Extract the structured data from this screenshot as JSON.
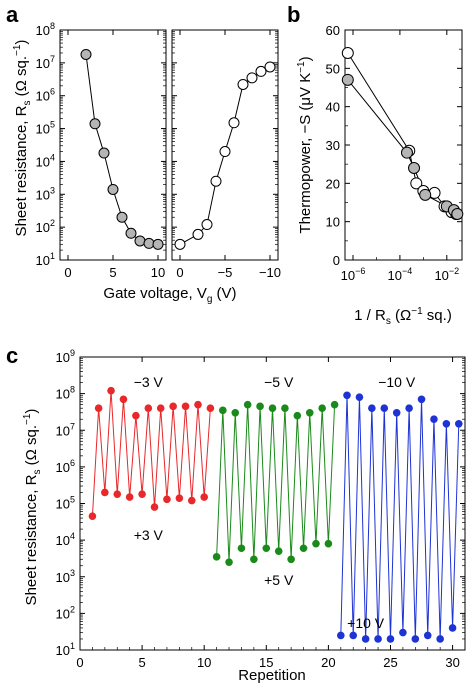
{
  "chart_data": [
    {
      "panel_label": "a",
      "type": "scatter",
      "ylabel": "Sheet resistance, R",
      "ylabel_sub": "s",
      "ylabel_unit": " (Ω sq.",
      "ylabel_unit_exp": "−1",
      "ylabel_close": ")",
      "xlabel": "Gate voltage, V",
      "xlabel_sub": "g",
      "xlabel_unit": " (V)",
      "y_scale": "log",
      "ylim": [
        10,
        100000000
      ],
      "y_ticks": [
        {
          "value": 10,
          "mantissa": "10",
          "exp": "1"
        },
        {
          "value": 100,
          "mantissa": "10",
          "exp": "2"
        },
        {
          "value": 1000,
          "mantissa": "10",
          "exp": "3"
        },
        {
          "value": 10000,
          "mantissa": "10",
          "exp": "4"
        },
        {
          "value": 100000,
          "mantissa": "10",
          "exp": "5"
        },
        {
          "value": 1000000,
          "mantissa": "10",
          "exp": "6"
        },
        {
          "value": 10000000,
          "mantissa": "10",
          "exp": "7"
        },
        {
          "value": 100000000,
          "mantissa": "10",
          "exp": "8"
        }
      ],
      "subpanels": [
        {
          "xlim": [
            0,
            10
          ],
          "x_ticks": [
            {
              "value": 0,
              "label": "0"
            },
            {
              "value": 5,
              "label": "5"
            },
            {
              "value": 10,
              "label": "10"
            }
          ],
          "series": [
            {
              "marker_fill": "#b5b5b5",
              "x": [
                2,
                3,
                4,
                5,
                6,
                7,
                8,
                9,
                10
              ],
              "y": [
                18000000,
                140000,
                18000,
                1400,
                200,
                65,
                38,
                32,
                30
              ]
            }
          ]
        },
        {
          "xlim": [
            0,
            -10
          ],
          "x_ticks": [
            {
              "value": 0,
              "label": "0"
            },
            {
              "value": -5,
              "label": "−5"
            },
            {
              "value": -10,
              "label": "−10"
            }
          ],
          "series": [
            {
              "marker_fill": "#ffffff",
              "x": [
                0,
                -2,
                -3,
                -4,
                -5,
                -6,
                -7,
                -8,
                -9,
                -10
              ],
              "y": [
                30,
                60,
                120,
                2500,
                20000,
                150000,
                2200000,
                3500000,
                5500000,
                7500000
              ]
            }
          ]
        }
      ]
    },
    {
      "panel_label": "b",
      "type": "scatter",
      "ylabel": "Thermopower, −S (μV K",
      "ylabel_exp": "−1",
      "ylabel_close": ")",
      "xlabel": "1 / R",
      "xlabel_sub": "s",
      "xlabel_unit": " (Ω",
      "xlabel_unit_exp": "−1",
      "xlabel_close": " sq.)",
      "x_scale": "log",
      "xlim": [
        1e-06,
        0.03
      ],
      "ylim": [
        0,
        60
      ],
      "x_ticks": [
        {
          "value": 1e-06,
          "mantissa": "10",
          "exp": "−6"
        },
        {
          "value": 0.0001,
          "mantissa": "10",
          "exp": "−4"
        },
        {
          "value": 0.01,
          "mantissa": "10",
          "exp": "−2"
        }
      ],
      "y_ticks": [
        0,
        10,
        20,
        30,
        40,
        50,
        60
      ],
      "series": [
        {
          "marker_fill": "#ffffff",
          "x": [
            6e-07,
            0.00025,
            0.0005,
            0.001,
            0.003,
            0.008,
            0.016,
            0.025
          ],
          "y": [
            54,
            28.5,
            20,
            18,
            17.5,
            14,
            12.5,
            12
          ]
        },
        {
          "marker_fill": "#b5b5b5",
          "x": [
            6e-07,
            0.0002,
            0.0004,
            0.0012,
            0.01,
            0.02,
            0.028
          ],
          "y": [
            47,
            28,
            24,
            17,
            14,
            13,
            12
          ]
        }
      ]
    },
    {
      "panel_label": "c",
      "type": "line",
      "ylabel": "Sheet resistance, R",
      "ylabel_sub": "s",
      "ylabel_unit": " (Ω sq.",
      "ylabel_unit_exp": "−1",
      "ylabel_close": ")",
      "xlabel": "Repetition",
      "y_scale": "log",
      "ylim": [
        10,
        1000000000
      ],
      "xlim": [
        0,
        31
      ],
      "x_ticks": [
        0,
        5,
        10,
        15,
        20,
        25,
        30
      ],
      "y_ticks": [
        {
          "value": 10,
          "mantissa": "10",
          "exp": "1"
        },
        {
          "value": 100,
          "mantissa": "10",
          "exp": "2"
        },
        {
          "value": 1000,
          "mantissa": "10",
          "exp": "3"
        },
        {
          "value": 10000,
          "mantissa": "10",
          "exp": "4"
        },
        {
          "value": 100000,
          "mantissa": "10",
          "exp": "5"
        },
        {
          "value": 1000000,
          "mantissa": "10",
          "exp": "6"
        },
        {
          "value": 10000000,
          "mantissa": "10",
          "exp": "7"
        },
        {
          "value": 100000000,
          "mantissa": "10",
          "exp": "8"
        },
        {
          "value": 1000000000,
          "mantissa": "10",
          "exp": "9"
        }
      ],
      "series": [
        {
          "color": "#e8282a",
          "x": [
            1,
            1.5,
            2,
            2.5,
            3,
            3.5,
            4,
            4.5,
            5,
            5.5,
            6,
            6.5,
            7,
            7.5,
            8,
            8.5,
            9,
            9.5,
            10,
            10.5
          ],
          "y": [
            45000,
            40000000,
            200000,
            120000000,
            180000,
            70000000,
            150000,
            25000000,
            180000,
            40000000,
            80000,
            40000000,
            130000,
            45000000,
            140000,
            45000000,
            120000,
            50000000,
            150000,
            40000000
          ]
        },
        {
          "color": "#1a8a1a",
          "x": [
            11,
            11.5,
            12,
            12.5,
            13,
            13.5,
            14,
            14.5,
            15,
            15.5,
            16,
            16.5,
            17,
            17.5,
            18,
            18.5,
            19,
            19.5,
            20,
            20.5
          ],
          "y": [
            3500,
            35000000,
            2500,
            30000000,
            6000,
            50000000,
            3000,
            45000000,
            6000,
            40000000,
            5000,
            40000000,
            3000,
            25000000,
            6000,
            30000000,
            8000,
            40000000,
            8000,
            50000000
          ]
        },
        {
          "color": "#1f33d4",
          "x": [
            21,
            21.5,
            22,
            22.5,
            23,
            23.5,
            24,
            24.5,
            25,
            25.5,
            26,
            26.5,
            27,
            27.5,
            28,
            28.5,
            29,
            29.5,
            30,
            30.5
          ],
          "y": [
            25,
            90000000,
            25,
            80000000,
            20,
            40000000,
            20,
            40000000,
            20,
            30000000,
            30,
            40000000,
            20,
            70000000,
            25,
            20000000,
            20,
            15000000,
            40,
            15000000
          ]
        }
      ],
      "annotations": [
        {
          "text": "−3 V",
          "x": 5.5,
          "y": 150000000
        },
        {
          "text": "+3 V",
          "x": 5.5,
          "y": 10000
        },
        {
          "text": "−5 V",
          "x": 16,
          "y": 150000000
        },
        {
          "text": "+5 V",
          "x": 16,
          "y": 600
        },
        {
          "text": "−10 V",
          "x": 25.5,
          "y": 150000000
        },
        {
          "text": "+10 V",
          "x": 23,
          "y": 40
        }
      ]
    }
  ]
}
